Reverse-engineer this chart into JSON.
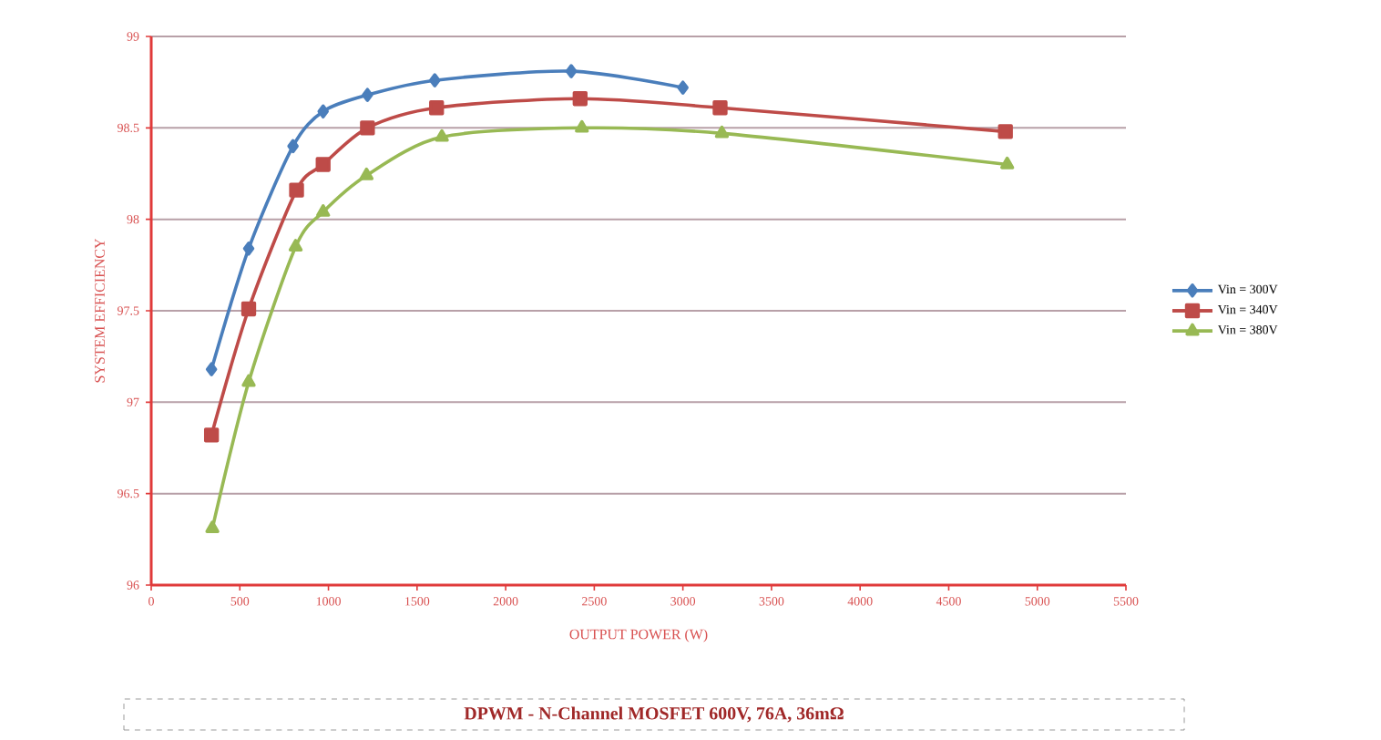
{
  "chart_data": {
    "type": "line",
    "title": "DPWM - N-Channel MOSFET 600V, 76A, 36mΩ",
    "xlabel": "OUTPUT POWER (W)",
    "ylabel": "SYSTEM EFFICIENCY",
    "xlim": [
      0,
      5500
    ],
    "xticks": [
      0,
      500,
      1000,
      1500,
      2000,
      2500,
      3000,
      3500,
      4000,
      4500,
      5000,
      5500
    ],
    "ylim": [
      96,
      99
    ],
    "yticks": [
      96,
      96.5,
      97,
      97.5,
      98,
      98.5,
      99
    ],
    "grid": "y",
    "legend": "right",
    "series": [
      {
        "name": "Vin = 300V",
        "color": "#4a7ebb",
        "marker": "diamond",
        "x": [
          340,
          550,
          800,
          970,
          1220,
          1600,
          2370,
          3000
        ],
        "values": [
          97.18,
          97.84,
          98.4,
          98.59,
          98.68,
          98.76,
          98.81,
          98.72
        ]
      },
      {
        "name": "Vin = 340V",
        "color": "#be4b48",
        "marker": "square",
        "x": [
          340,
          550,
          820,
          970,
          1220,
          1610,
          2420,
          3210,
          4820
        ],
        "values": [
          96.82,
          97.51,
          98.16,
          98.3,
          98.5,
          98.61,
          98.66,
          98.61,
          98.48
        ]
      },
      {
        "name": "Vin = 380V",
        "color": "#98b954",
        "marker": "triangle",
        "x": [
          345,
          550,
          815,
          970,
          1215,
          1640,
          2430,
          3220,
          4830
        ],
        "values": [
          96.31,
          97.11,
          97.85,
          98.04,
          98.24,
          98.45,
          98.5,
          98.47,
          98.3
        ]
      }
    ]
  }
}
